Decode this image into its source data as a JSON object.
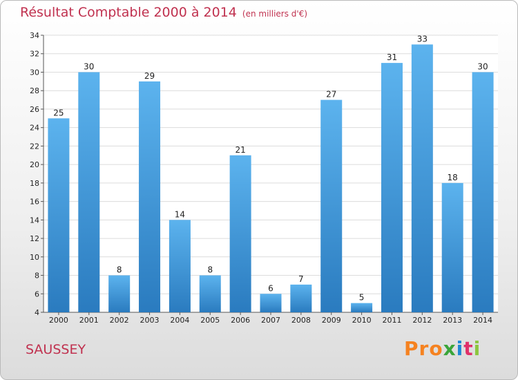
{
  "header": {
    "title": "Résultat Comptable 2000 à 2014",
    "subtitle": "(en milliers d'€)"
  },
  "footer": {
    "commune": "SAUSSEY",
    "brand": "Proxiti",
    "brand_colors": [
      "#f58220",
      "#f58220",
      "#f58220",
      "#3aa53a",
      "#1e88d6",
      "#e0306a",
      "#8cc63f"
    ]
  },
  "colors": {
    "bar_top": "#5cb3ee",
    "bar_bottom": "#2a7bbf",
    "grid": "#dcdcdc",
    "title": "#c0314f"
  },
  "chart_data": {
    "type": "bar",
    "categories": [
      "2000",
      "2001",
      "2002",
      "2003",
      "2004",
      "2005",
      "2006",
      "2007",
      "2008",
      "2009",
      "2010",
      "2011",
      "2012",
      "2013",
      "2014"
    ],
    "values": [
      25,
      30,
      8,
      29,
      14,
      8,
      21,
      6,
      7,
      27,
      5,
      31,
      33,
      18,
      30
    ],
    "ylim": [
      4,
      34
    ],
    "yticks": [
      4,
      6,
      8,
      10,
      12,
      14,
      16,
      18,
      20,
      22,
      24,
      26,
      28,
      30,
      32,
      34
    ],
    "grid": true
  }
}
